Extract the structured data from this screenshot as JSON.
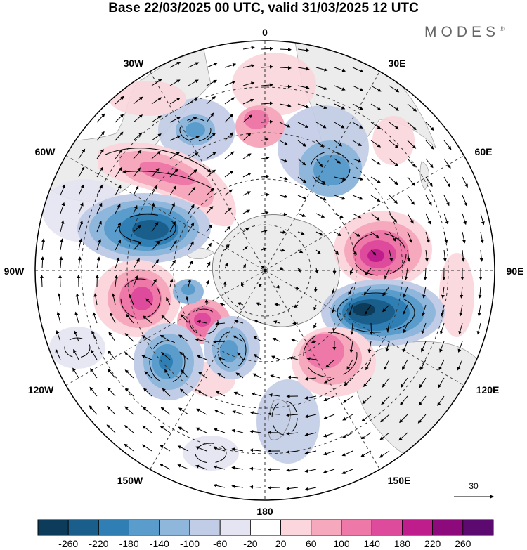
{
  "title": "Base 22/03/2025 00 UTC, valid 31/03/2025 12 UTC",
  "brand": "MODES",
  "brand_mark": "®",
  "longitude_labels": {
    "top": "0",
    "top_left": "30W",
    "top_right": "30E",
    "upper_left": "60W",
    "upper_right": "60E",
    "left": "90W",
    "right": "90E",
    "lower_left": "120W",
    "lower_right": "120E",
    "bottom_left": "150W",
    "bottom_right": "150E",
    "bottom": "180"
  },
  "vector_scale": {
    "label": "30"
  },
  "colorbar": {
    "labels": [
      "-260",
      "-220",
      "-180",
      "-140",
      "-100",
      "-60",
      "-20",
      "20",
      "60",
      "100",
      "140",
      "180",
      "220",
      "260"
    ],
    "colors": [
      "#0d3b5a",
      "#1a5f8c",
      "#2f7fb4",
      "#5a9ccb",
      "#8fb6db",
      "#c1cce6",
      "#e4e4f2",
      "#ffffff",
      "#fbd6dc",
      "#f6a9bd",
      "#ee78a8",
      "#de4a9c",
      "#c01d8c",
      "#8c0a7c",
      "#5c0a6f"
    ]
  },
  "anomalies": [
    {
      "id": "neg-1",
      "value": -260,
      "color": "#0d3b5a"
    },
    {
      "id": "neg-2",
      "value": -220,
      "color": "#1a5f8c"
    },
    {
      "id": "pos-1",
      "value": 180,
      "color": "#de4a9c"
    },
    {
      "id": "pos-2",
      "value": 220,
      "color": "#c01d8c"
    }
  ]
}
